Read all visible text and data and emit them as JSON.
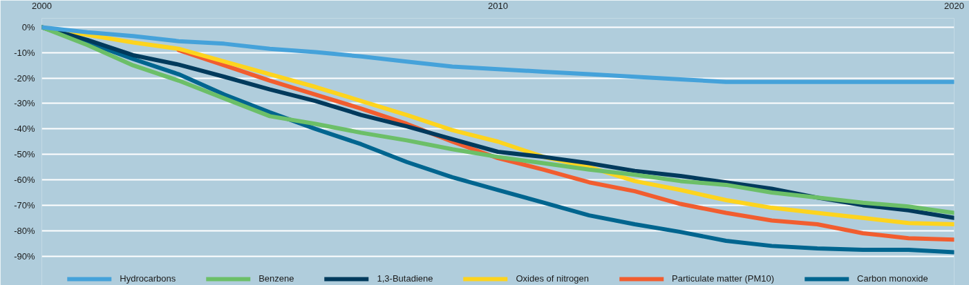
{
  "chart_data": {
    "type": "line",
    "x": [
      2000,
      2001,
      2002,
      2003,
      2004,
      2005,
      2006,
      2007,
      2008,
      2009,
      2010,
      2011,
      2012,
      2013,
      2014,
      2015,
      2016,
      2017,
      2018,
      2019,
      2020
    ],
    "series": [
      {
        "name": "Hydrocarbons",
        "color": "#45a2da",
        "values": [
          0,
          -2,
          -3.5,
          -5.5,
          -6.5,
          -8.5,
          -9.8,
          -11.5,
          -13.5,
          -15.5,
          -16.5,
          -17.5,
          -18.5,
          -19.5,
          -20.5,
          -21.5,
          -21.5,
          -21.5,
          -21.5,
          -21.5,
          -21.5
        ]
      },
      {
        "name": "Benzene",
        "color": "#6cbf68",
        "values": [
          0,
          -7,
          -15,
          -21,
          -28,
          -35,
          -38,
          -41.5,
          -44.5,
          -48,
          -51,
          -53.5,
          -56,
          -58,
          -60.5,
          -62,
          -65,
          -67,
          -69,
          -70.5,
          -73
        ]
      },
      {
        "name": "1,3-Butadiene",
        "color": "#003a5c",
        "values": [
          0,
          -5,
          -11,
          -14.7,
          -19.5,
          -24.5,
          -29,
          -34.5,
          -39,
          -44,
          -49,
          -51,
          -53.5,
          -56.5,
          -58.5,
          -61,
          -63.5,
          -67,
          -70,
          -72,
          -75
        ]
      },
      {
        "name": "Oxides of nitrogen",
        "color": "#fdd41e",
        "values": [
          0,
          -3,
          -6,
          -8.5,
          -13.5,
          -18.5,
          -23.5,
          -29,
          -34.5,
          -40.5,
          -45,
          -51,
          -55,
          -60.5,
          -64,
          -68,
          -71,
          -73,
          -75,
          -77,
          -77.5
        ]
      },
      {
        "name": "Particulate matter (PM10)",
        "color": "#f15d2f",
        "values": [
          null,
          null,
          null,
          -9,
          -15,
          -21,
          -26.5,
          -32,
          -38,
          -45,
          -51.5,
          -56,
          -61,
          -64.5,
          -69.5,
          -73,
          -76,
          -77.5,
          -81,
          -83,
          -83.5
        ]
      },
      {
        "name": "Carbon monoxide",
        "color": "#00658f",
        "values": [
          0,
          -6,
          -12.5,
          -18.5,
          -26.5,
          -33.5,
          -40,
          -46,
          -53,
          -59,
          -64,
          -69,
          -74,
          -77.5,
          -80.5,
          -84,
          -86,
          -87,
          -87.5,
          -87.5,
          -88.5
        ]
      }
    ],
    "xlim": [
      2000,
      2020
    ],
    "xticks": [
      2000,
      2010,
      2020
    ],
    "ylim": [
      -101.5,
      3.5
    ],
    "yticks": [
      {
        "value": 0,
        "label": "0%"
      },
      {
        "value": -10,
        "label": "-10%"
      },
      {
        "value": -20,
        "label": "-20%"
      },
      {
        "value": -30,
        "label": "-30%"
      },
      {
        "value": -40,
        "label": "-40%"
      },
      {
        "value": -50,
        "label": "-50%"
      },
      {
        "value": -60,
        "label": "-60%"
      },
      {
        "value": -70,
        "label": "-70%"
      },
      {
        "value": -80,
        "label": "-80%"
      },
      {
        "value": -90,
        "label": "-90%"
      }
    ],
    "grid": "y",
    "legend": "bottom",
    "line_style": "solid"
  }
}
